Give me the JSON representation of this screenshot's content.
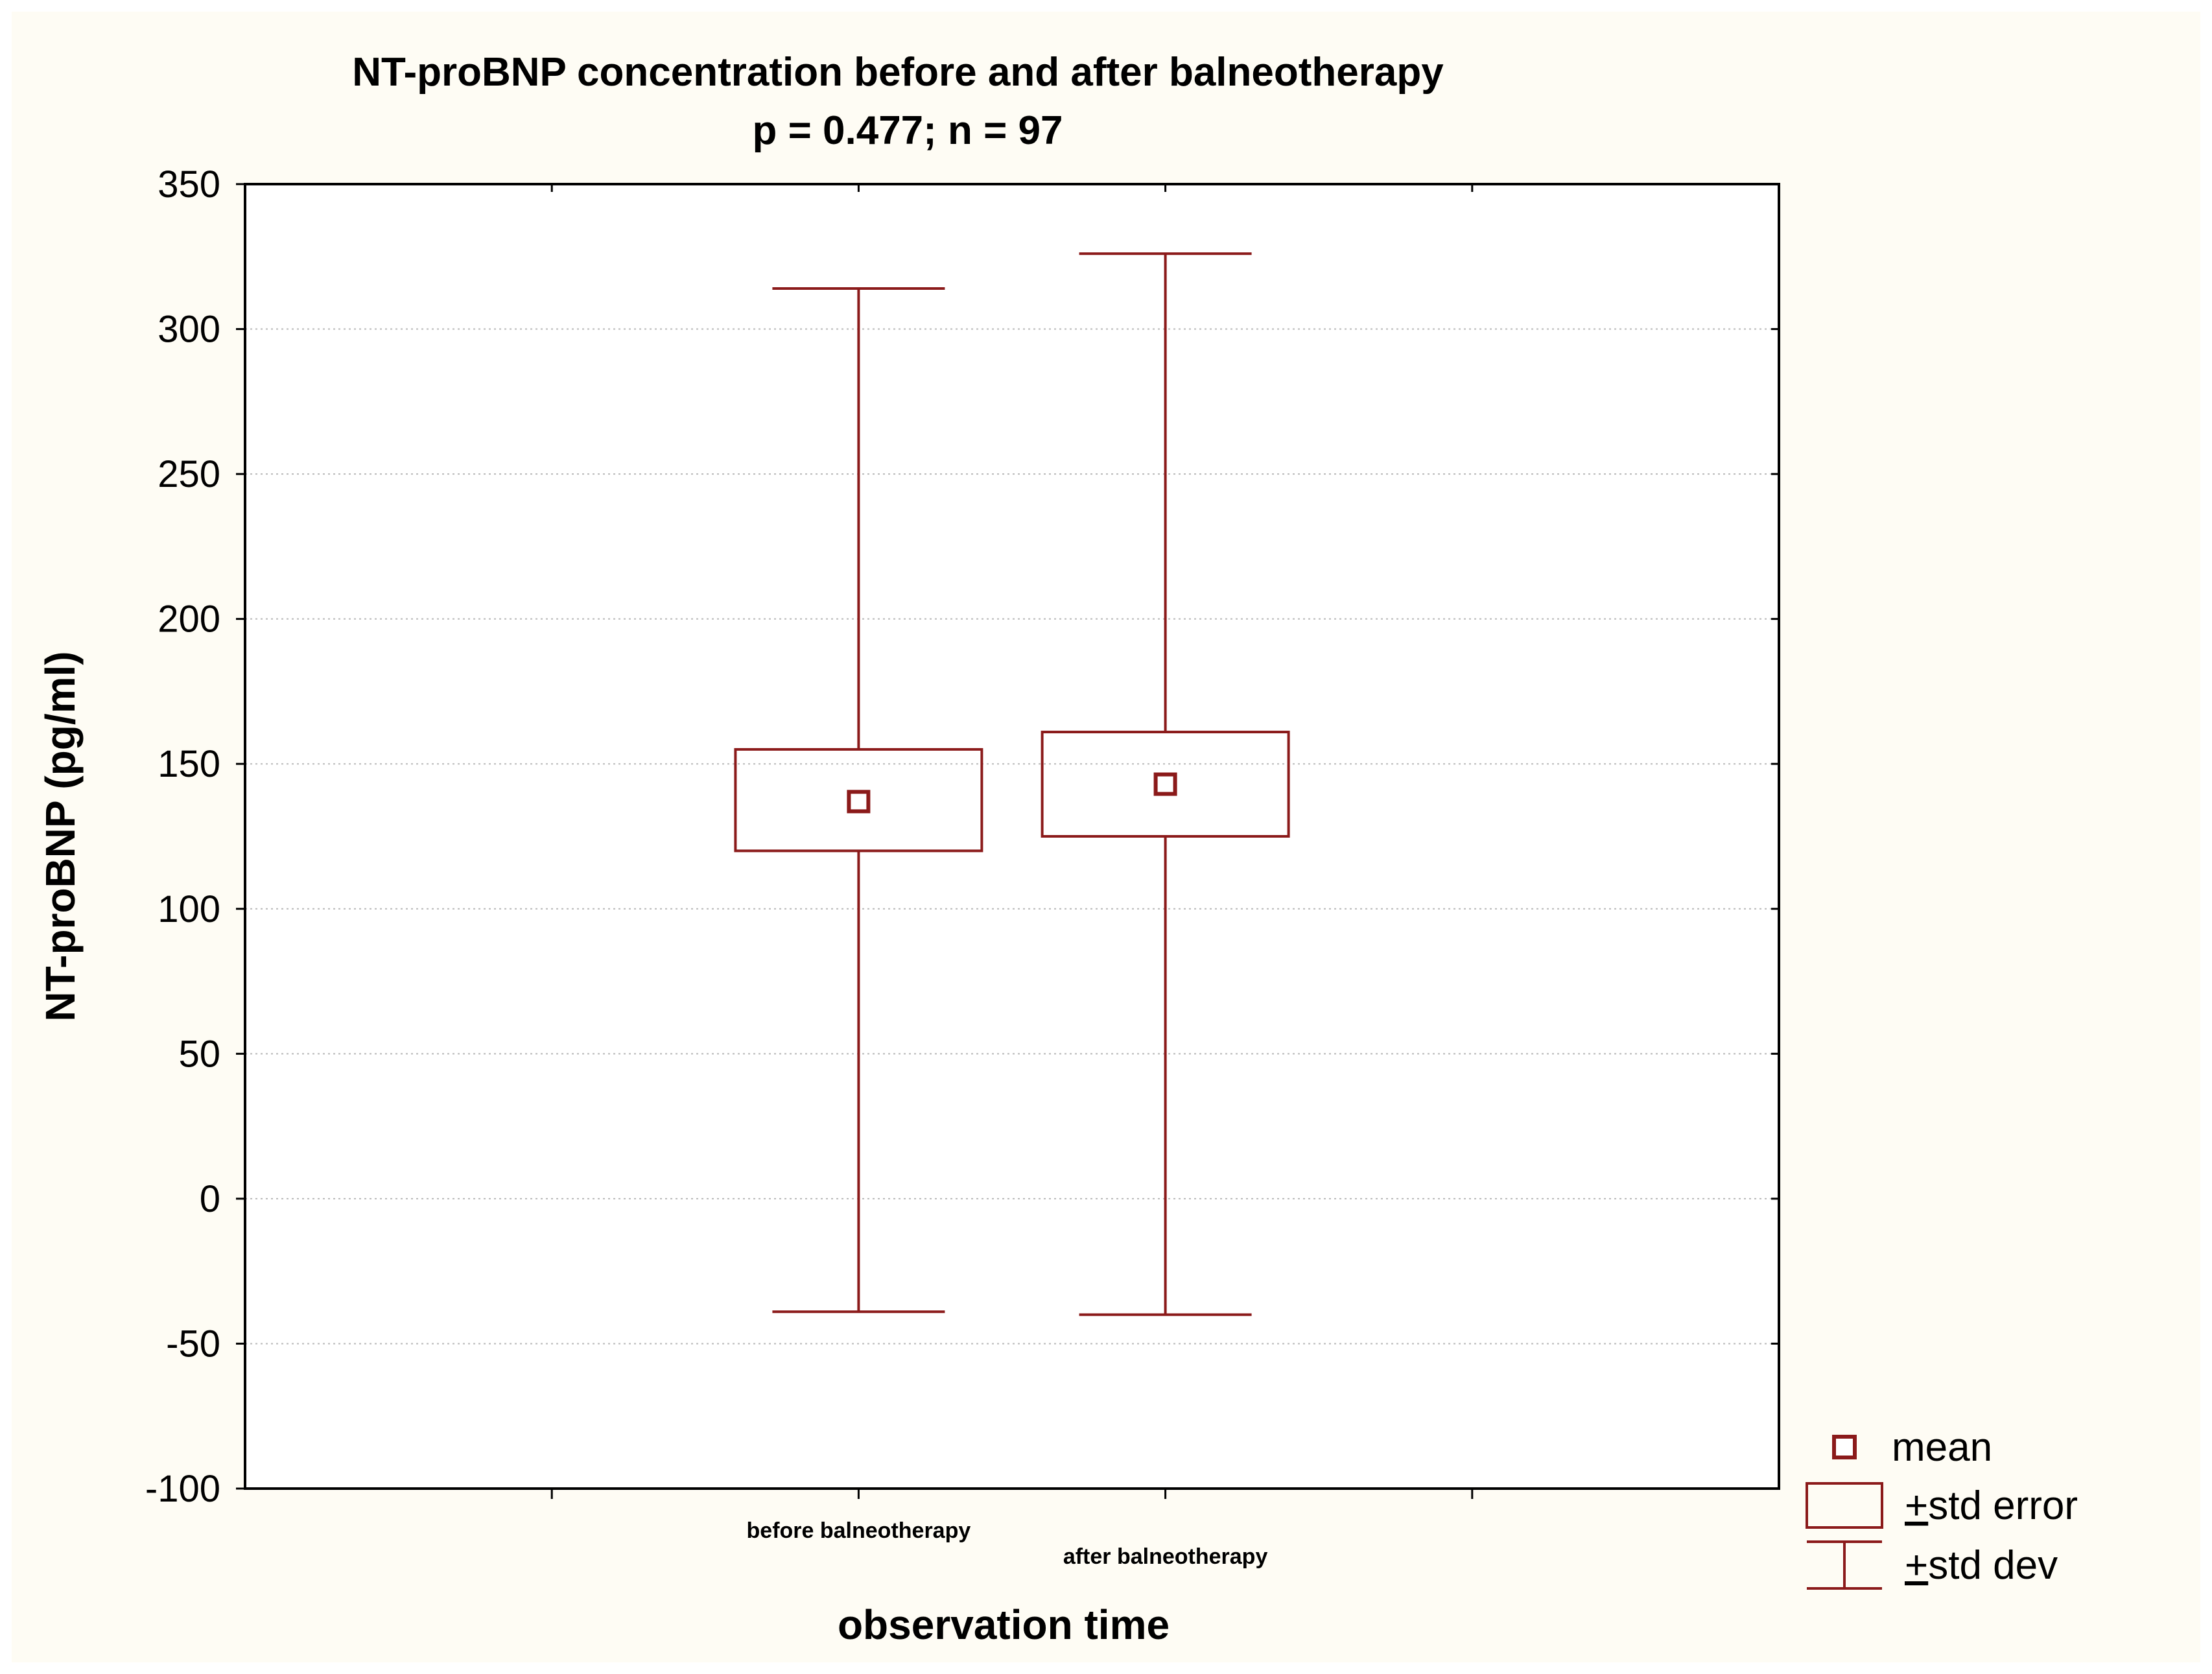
{
  "colors": {
    "background": "#fefcf4",
    "plot_background": "#ffffff",
    "series": "#8b1a1a",
    "axis": "#000000",
    "grid": "#b8b8b8"
  },
  "chart_data": {
    "type": "box",
    "title": "NT-proBNP concentration before and after balneotherapy",
    "subtitle": "p = 0.477; n = 97",
    "xlabel": "observation time",
    "ylabel": "NT-proBNP (pg/ml)",
    "ylim": [
      -100,
      350
    ],
    "yticks": [
      350,
      300,
      250,
      200,
      150,
      100,
      50,
      0,
      -50,
      -100
    ],
    "grid": "horizontal dotted",
    "legend_position": "bottom-right",
    "categories": [
      "before balneotherapy",
      "after balneotherapy"
    ],
    "series": [
      {
        "category": "before balneotherapy",
        "mean": 137,
        "std_error_low": 120,
        "std_error_high": 155,
        "std_dev_low": -39,
        "std_dev_high": 314
      },
      {
        "category": "after balneotherapy",
        "mean": 143,
        "std_error_low": 125,
        "std_error_high": 161,
        "std_dev_low": -40,
        "std_dev_high": 326
      }
    ],
    "legend": [
      {
        "symbol": "square-marker",
        "label": "mean"
      },
      {
        "symbol": "box",
        "prefix": "+",
        "label": "std error"
      },
      {
        "symbol": "whisker",
        "prefix": "+",
        "label": "std dev"
      }
    ]
  }
}
